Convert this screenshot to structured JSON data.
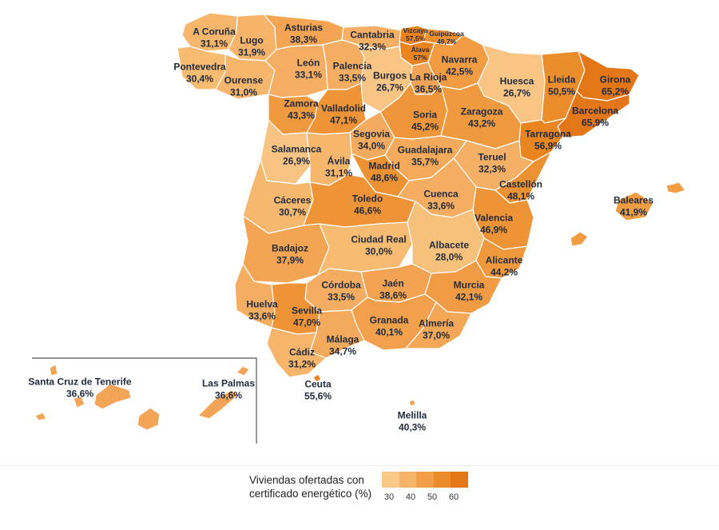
{
  "regions": [
    {
      "id": "a-coruna",
      "name": "A Coruña",
      "value": "31,1%",
      "fill": "#f6b66b"
    },
    {
      "id": "lugo",
      "name": "Lugo",
      "value": "31,9%",
      "fill": "#f6b369"
    },
    {
      "id": "pontevedra",
      "name": "Pontevedra",
      "value": "30,4%",
      "fill": "#f7bb72"
    },
    {
      "id": "ourense",
      "name": "Ourense",
      "value": "31,0%",
      "fill": "#f6b66b"
    },
    {
      "id": "asturias",
      "name": "Asturias",
      "value": "38,3%",
      "fill": "#f4a452"
    },
    {
      "id": "cantabria",
      "name": "Cantabria",
      "value": "32,3%",
      "fill": "#f5b066"
    },
    {
      "id": "vizcaya",
      "name": "Vizcaya",
      "value": "57,5%",
      "fill": "#e9821e"
    },
    {
      "id": "guipuzcoa",
      "name": "Guipúzcoa",
      "value": "49,7%",
      "fill": "#ee902f"
    },
    {
      "id": "alava",
      "name": "Álava",
      "value": "57%",
      "fill": "#e9841f"
    },
    {
      "id": "navarra",
      "name": "Navarra",
      "value": "42,5%",
      "fill": "#f19b42"
    },
    {
      "id": "leon",
      "name": "León",
      "value": "33,1%",
      "fill": "#f5ae63"
    },
    {
      "id": "palencia",
      "name": "Palencia",
      "value": "33,5%",
      "fill": "#f5ad61"
    },
    {
      "id": "burgos",
      "name": "Burgos",
      "value": "26,7%",
      "fill": "#f8c585"
    },
    {
      "id": "la-rioja",
      "name": "La Rioja",
      "value": "36,5%",
      "fill": "#f3a557"
    },
    {
      "id": "huesca",
      "name": "Huesca",
      "value": "26,7%",
      "fill": "#f8c585"
    },
    {
      "id": "lleida",
      "name": "Lleida",
      "value": "50,5%",
      "fill": "#ec8d2b"
    },
    {
      "id": "girona",
      "name": "Girona",
      "value": "65,2%",
      "fill": "#e37718"
    },
    {
      "id": "zamora",
      "name": "Zamora",
      "value": "43,3%",
      "fill": "#f09a40"
    },
    {
      "id": "valladolid",
      "name": "Valladolid",
      "value": "47,1%",
      "fill": "#ee9436"
    },
    {
      "id": "soria",
      "name": "Soria",
      "value": "45,2%",
      "fill": "#ef963a"
    },
    {
      "id": "zaragoza",
      "name": "Zaragoza",
      "value": "43,2%",
      "fill": "#f09a40"
    },
    {
      "id": "barcelona",
      "name": "Barcelona",
      "value": "65,9%",
      "fill": "#e37617"
    },
    {
      "id": "segovia",
      "name": "Segovia",
      "value": "34,0%",
      "fill": "#f5ab5f"
    },
    {
      "id": "tarragona",
      "name": "Tarragona",
      "value": "56,9%",
      "fill": "#e9841f"
    },
    {
      "id": "salamanca",
      "name": "Salamanca",
      "value": "26,9%",
      "fill": "#f8c484"
    },
    {
      "id": "avila",
      "name": "Ávila",
      "value": "31,1%",
      "fill": "#f6b66b"
    },
    {
      "id": "guadalajara",
      "name": "Guadalajara",
      "value": "35,7%",
      "fill": "#f4a95b"
    },
    {
      "id": "teruel",
      "name": "Teruel",
      "value": "32,3%",
      "fill": "#f5b066"
    },
    {
      "id": "madrid",
      "name": "Madrid",
      "value": "48,6%",
      "fill": "#ed9232"
    },
    {
      "id": "caceres",
      "name": "Cáceres",
      "value": "30,7%",
      "fill": "#f6b86e"
    },
    {
      "id": "toledo",
      "name": "Toledo",
      "value": "46,6%",
      "fill": "#ee9436"
    },
    {
      "id": "cuenca",
      "name": "Cuenca",
      "value": "33,6%",
      "fill": "#f5ad61"
    },
    {
      "id": "castellon",
      "name": "Castellón",
      "value": "48,1%",
      "fill": "#ed9233"
    },
    {
      "id": "baleares",
      "name": "Baleares",
      "value": "41,9%",
      "fill": "#f19d45"
    },
    {
      "id": "valencia",
      "name": "Valencia",
      "value": "46,9%",
      "fill": "#ee9436"
    },
    {
      "id": "badajoz",
      "name": "Badajoz",
      "value": "37,9%",
      "fill": "#f3a554"
    },
    {
      "id": "ciudad-real",
      "name": "Ciudad Real",
      "value": "30,0%",
      "fill": "#f7bb72"
    },
    {
      "id": "albacete",
      "name": "Albacete",
      "value": "28,0%",
      "fill": "#f7c07b"
    },
    {
      "id": "alicante",
      "name": "Alicante",
      "value": "44,2%",
      "fill": "#ef983c"
    },
    {
      "id": "cordoba",
      "name": "Córdoba",
      "value": "33,5%",
      "fill": "#f5ad61"
    },
    {
      "id": "jaen",
      "name": "Jaén",
      "value": "38,6%",
      "fill": "#f3a352"
    },
    {
      "id": "murcia",
      "name": "Murcia",
      "value": "42,1%",
      "fill": "#f19c44"
    },
    {
      "id": "huelva",
      "name": "Huelva",
      "value": "33,6%",
      "fill": "#f5ad61"
    },
    {
      "id": "sevilla",
      "name": "Sevilla",
      "value": "47,0%",
      "fill": "#ee9436"
    },
    {
      "id": "granada",
      "name": "Granada",
      "value": "40,1%",
      "fill": "#f2a04b"
    },
    {
      "id": "almeria",
      "name": "Almería",
      "value": "37,0%",
      "fill": "#f3a757"
    },
    {
      "id": "malaga",
      "name": "Málaga",
      "value": "34,7%",
      "fill": "#f4aa5d"
    },
    {
      "id": "cadiz",
      "name": "Cádiz",
      "value": "31,2%",
      "fill": "#f6b56b"
    },
    {
      "id": "santa-cruz-de-tenerife",
      "name": "Santa Cruz de Tenerife",
      "value": "36,6%",
      "fill": "#f3a557"
    },
    {
      "id": "las-palmas",
      "name": "Las Palmas",
      "value": "36,6%",
      "fill": "#f3a557"
    },
    {
      "id": "ceuta",
      "name": "Ceuta",
      "value": "55,6%",
      "fill": "#ea8520"
    },
    {
      "id": "melilla",
      "name": "Melilla",
      "value": "40,3%",
      "fill": "#f2a04b"
    }
  ],
  "legend": {
    "title_line1": "Viviendas ofertadas con",
    "title_line2": "certificado energético (%)",
    "ticks": [
      "30",
      "40",
      "50",
      "60"
    ],
    "colors": [
      "#f9c98a",
      "#f6b36a",
      "#f19e47",
      "#eb8a2a",
      "#e37718"
    ]
  }
}
